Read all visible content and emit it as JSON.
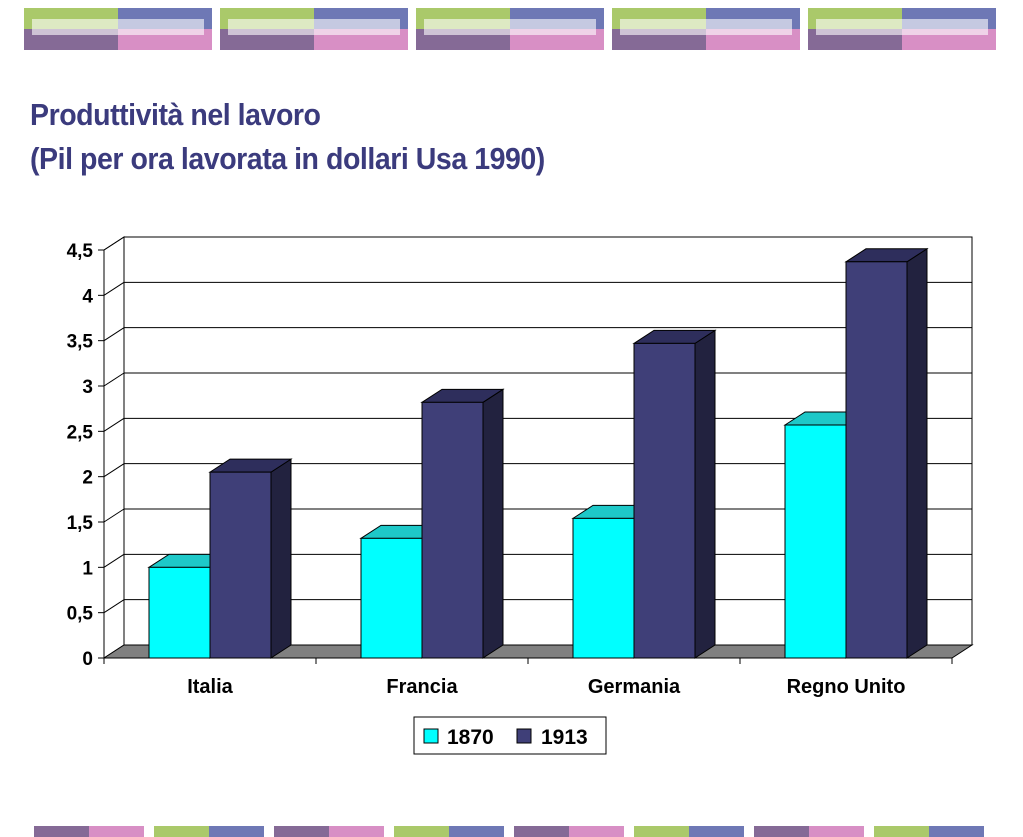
{
  "slide": {
    "title_line1": "Produttività nel lavoro",
    "title_line2": "(Pil per ora lavorata in dollari Usa 1990)",
    "title_color": "#3b3b7d"
  },
  "decoration": {
    "band_colors": [
      "#aac96a",
      "#6e78b5",
      "#856a96",
      "#d88fc5"
    ]
  },
  "chart_data": {
    "type": "bar",
    "categories": [
      "Italia",
      "Francia",
      "Germania",
      "Regno Unito"
    ],
    "series": [
      {
        "name": "1870",
        "values": [
          1.0,
          1.32,
          1.54,
          2.57
        ],
        "color": "#00ffff",
        "top_color": "#1ec8c8",
        "side_color": "#0aa0a0"
      },
      {
        "name": "1913",
        "values": [
          2.05,
          2.82,
          3.47,
          4.37
        ],
        "color": "#3f3f78",
        "top_color": "#2e2e5c",
        "side_color": "#22223f"
      }
    ],
    "y_ticks": [
      "0",
      "0,5",
      "1",
      "1,5",
      "2",
      "2,5",
      "3",
      "3,5",
      "4",
      "4,5"
    ],
    "ylim": [
      0,
      4.5
    ],
    "grid": true,
    "three_d": true,
    "legend_position": "bottom-center"
  }
}
